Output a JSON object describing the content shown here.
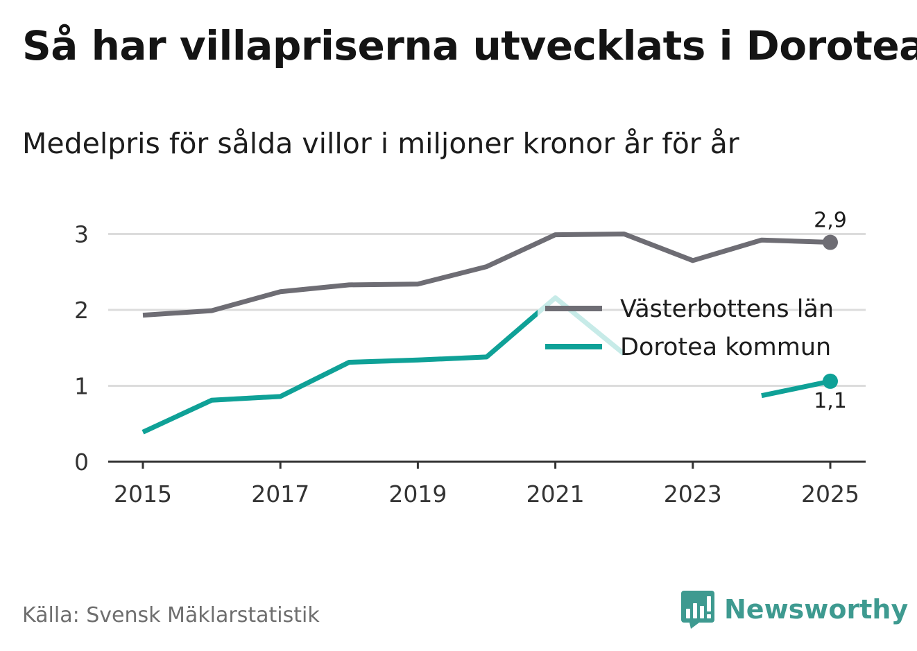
{
  "title": "Så har villapriserna utvecklats i Dorotea",
  "subtitle": "Medelpris för sålda villor i miljoner kronor år för år",
  "source": "Källa: Svensk Mäklarstatistik",
  "brand": "Newsworthy",
  "colors": {
    "lan": "#6e6d74",
    "kommun": "#0fa197",
    "kommun_faded": "#c7ebe8",
    "grid": "#dcdcdc",
    "axis": "#333333",
    "brand": "#3e9a90"
  },
  "chart_data": {
    "type": "line",
    "x": [
      2015,
      2016,
      2017,
      2018,
      2019,
      2020,
      2021,
      2022,
      2023,
      2024,
      2025
    ],
    "x_ticks": [
      "2015",
      "2017",
      "2019",
      "2021",
      "2023",
      "2025"
    ],
    "y_ticks": [
      "0",
      "1",
      "2",
      "3"
    ],
    "ylim": [
      0,
      3.3
    ],
    "grid": true,
    "legend_position": "right-middle",
    "series": [
      {
        "name": "Västerbottens län",
        "color_key": "lan",
        "values": [
          1.93,
          1.99,
          2.24,
          2.33,
          2.34,
          2.57,
          2.99,
          3.0,
          2.65,
          2.92,
          2.89
        ],
        "end_label": "2,9"
      },
      {
        "name": "Dorotea kommun",
        "color_key": "kommun",
        "values": [
          0.39,
          0.81,
          0.86,
          1.31,
          1.34,
          1.38,
          2.16,
          1.42,
          null,
          0.87,
          1.06
        ],
        "end_label": "1,1"
      }
    ]
  }
}
